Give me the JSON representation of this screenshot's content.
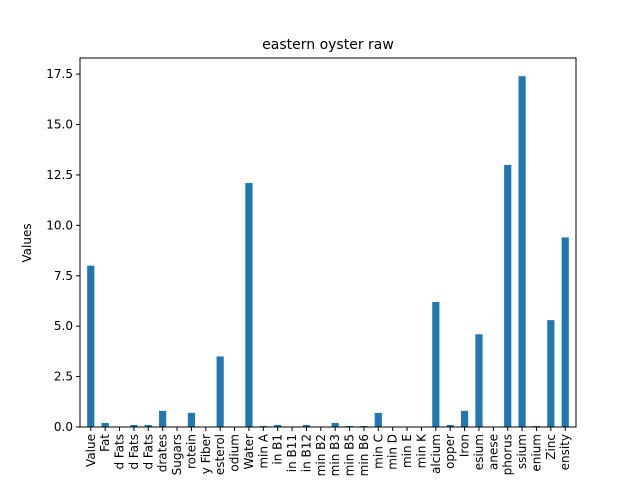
{
  "chart_data": {
    "type": "bar",
    "title": "eastern oyster raw",
    "xlabel": "",
    "ylabel": "Values",
    "ylim": [
      0,
      18.3
    ],
    "grid": false,
    "legend": "none",
    "bar_color": "#1f77b4",
    "yticks": [
      {
        "value": 0.0,
        "label": "0.0"
      },
      {
        "value": 2.5,
        "label": "2.5"
      },
      {
        "value": 5.0,
        "label": "5.0"
      },
      {
        "value": 7.5,
        "label": "7.5"
      },
      {
        "value": 10.0,
        "label": "10.0"
      },
      {
        "value": 12.5,
        "label": "12.5"
      },
      {
        "value": 15.0,
        "label": "15.0"
      },
      {
        "value": 17.5,
        "label": "17.5"
      }
    ],
    "categories": [
      "Value",
      "Fat",
      "d Fats",
      "d Fats",
      "d Fats",
      "drates",
      "Sugars",
      "rotein",
      "y Fiber",
      "esterol",
      "odium",
      "Water",
      "min A",
      "in B1",
      "in B11",
      "in B12",
      "min B2",
      "min B3",
      "min B5",
      "min B6",
      "min C",
      "min D",
      "min E",
      "min K",
      "alcium",
      "opper",
      "Iron",
      "esium",
      "anese",
      "phorus",
      "ssium",
      "enium",
      "Zinc",
      "ensity"
    ],
    "values": [
      8.0,
      0.2,
      0.0,
      0.1,
      0.1,
      0.8,
      0.0,
      0.7,
      0.0,
      3.5,
      0.0,
      12.1,
      0.05,
      0.1,
      0.0,
      0.1,
      0.0,
      0.2,
      0.05,
      0.05,
      0.7,
      0.0,
      0.0,
      0.0,
      6.2,
      0.1,
      0.8,
      4.6,
      0.0,
      13.0,
      17.4,
      0.05,
      5.3,
      9.4
    ]
  }
}
